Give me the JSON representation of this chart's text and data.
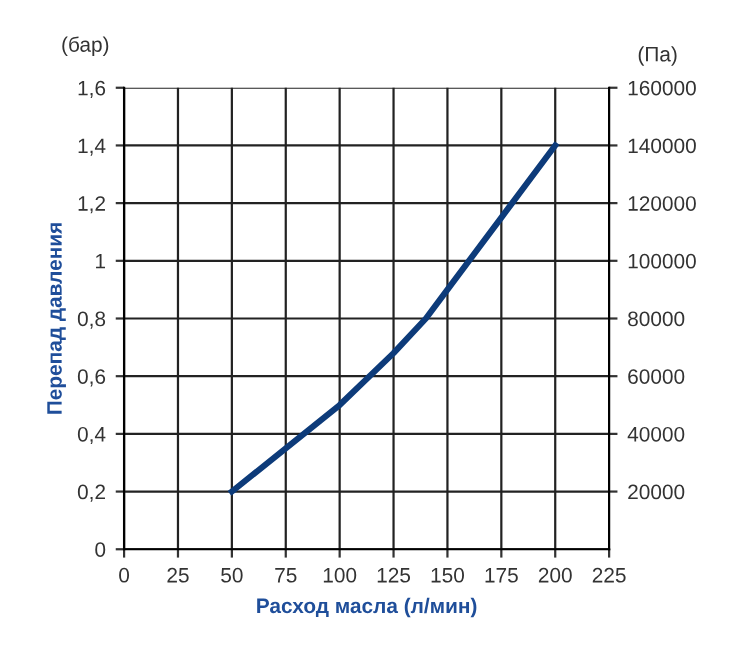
{
  "chart_data": {
    "type": "line",
    "xlabel": "Расход масла (л/мин)",
    "ylabel": "Перепад давления",
    "y2label": "(Па)",
    "annotations": [
      "(бар)"
    ],
    "x": [
      50,
      75,
      100,
      125,
      140,
      150,
      175,
      200
    ],
    "series": [
      {
        "color": "#0d3b7a",
        "values": [
          0.2,
          0.35,
          0.5,
          0.68,
          0.8,
          0.9,
          1.15,
          1.4
        ]
      }
    ],
    "xlim": [
      0,
      225
    ],
    "xticks": [
      0,
      25,
      50,
      75,
      100,
      125,
      150,
      175,
      200,
      225
    ],
    "ylim": [
      0,
      1.6
    ],
    "yticks": [
      0,
      {
        "value": 0.2,
        "label": "0,2"
      },
      {
        "value": 0.4,
        "label": "0,4"
      },
      {
        "value": 0.6,
        "label": "0,6"
      },
      {
        "value": 0.8,
        "label": "0,8"
      },
      1,
      {
        "value": 1.2,
        "label": "1,2"
      },
      {
        "value": 1.4,
        "label": "1,4"
      },
      {
        "value": 1.6,
        "label": "1,6"
      }
    ],
    "y2lim": [
      0,
      160000
    ],
    "y2ticks": [
      20000,
      40000,
      60000,
      80000,
      100000,
      120000,
      140000,
      160000
    ],
    "grid": true,
    "legend": false,
    "marker": "none",
    "line_style": "solid"
  }
}
